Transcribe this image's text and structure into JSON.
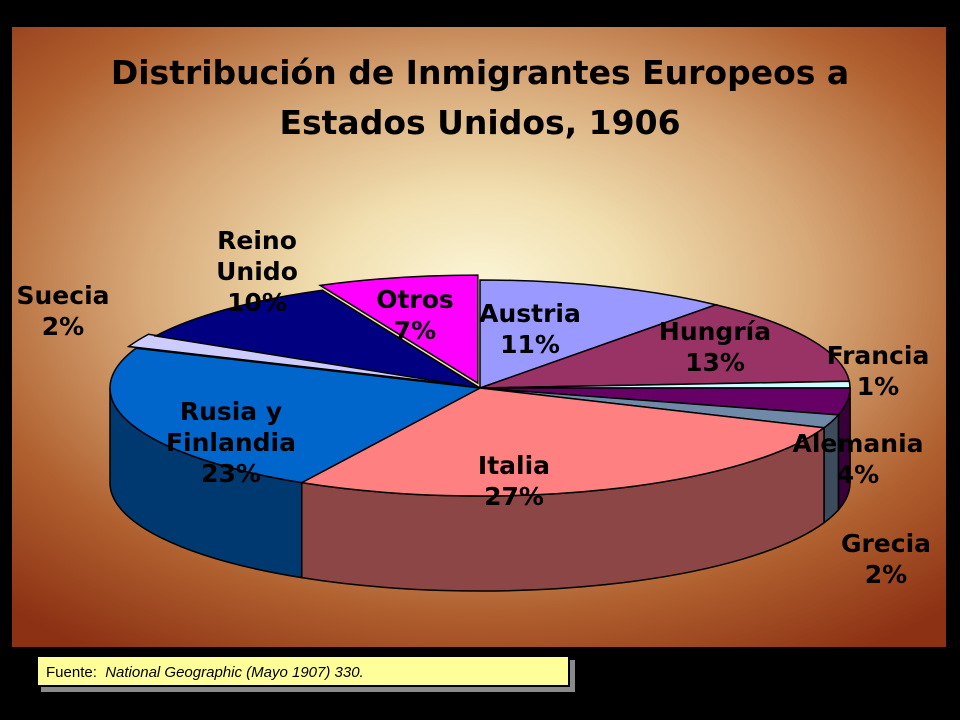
{
  "chart_data": {
    "type": "pie",
    "title_lines": [
      "Distribución de Inmigrantes Europeos a",
      "Estados Unidos, 1906"
    ],
    "slices": [
      {
        "name": "Austria",
        "label_lines": [
          "Austria",
          "11%"
        ],
        "value": 11,
        "color": "#9999ff"
      },
      {
        "name": "Hungría",
        "label_lines": [
          "Hungría",
          "13%"
        ],
        "value": 13,
        "color": "#993366"
      },
      {
        "name": "Francia",
        "label_lines": [
          "Francia",
          "1%"
        ],
        "value": 1,
        "color": "#ccffff"
      },
      {
        "name": "Alemania",
        "label_lines": [
          "Alemania",
          "4%"
        ],
        "value": 4,
        "color": "#660066"
      },
      {
        "name": "Grecia",
        "label_lines": [
          "Grecia",
          "2%"
        ],
        "value": 2,
        "color": "#6f8aa8"
      },
      {
        "name": "Italia",
        "label_lines": [
          "Italia",
          "27%"
        ],
        "value": 27,
        "color": "#ff8080"
      },
      {
        "name": "Rusia y Finlandia",
        "label_lines": [
          "Rusia y",
          "Finlandia",
          "23%"
        ],
        "value": 23,
        "color": "#0066cc"
      },
      {
        "name": "Suecia",
        "label_lines": [
          "Suecia",
          "2%"
        ],
        "value": 2,
        "color": "#ccccff"
      },
      {
        "name": "Reino Unido",
        "label_lines": [
          "Reino",
          "Unido",
          "10%"
        ],
        "value": 10,
        "color": "#000080"
      },
      {
        "name": "Otros",
        "label_lines": [
          "Otros",
          "7%"
        ],
        "value": 7,
        "color": "#ff00ff"
      }
    ]
  },
  "source": {
    "prefix": "Fuente:",
    "reference": "National Geographic (Mayo 1907) 330."
  }
}
